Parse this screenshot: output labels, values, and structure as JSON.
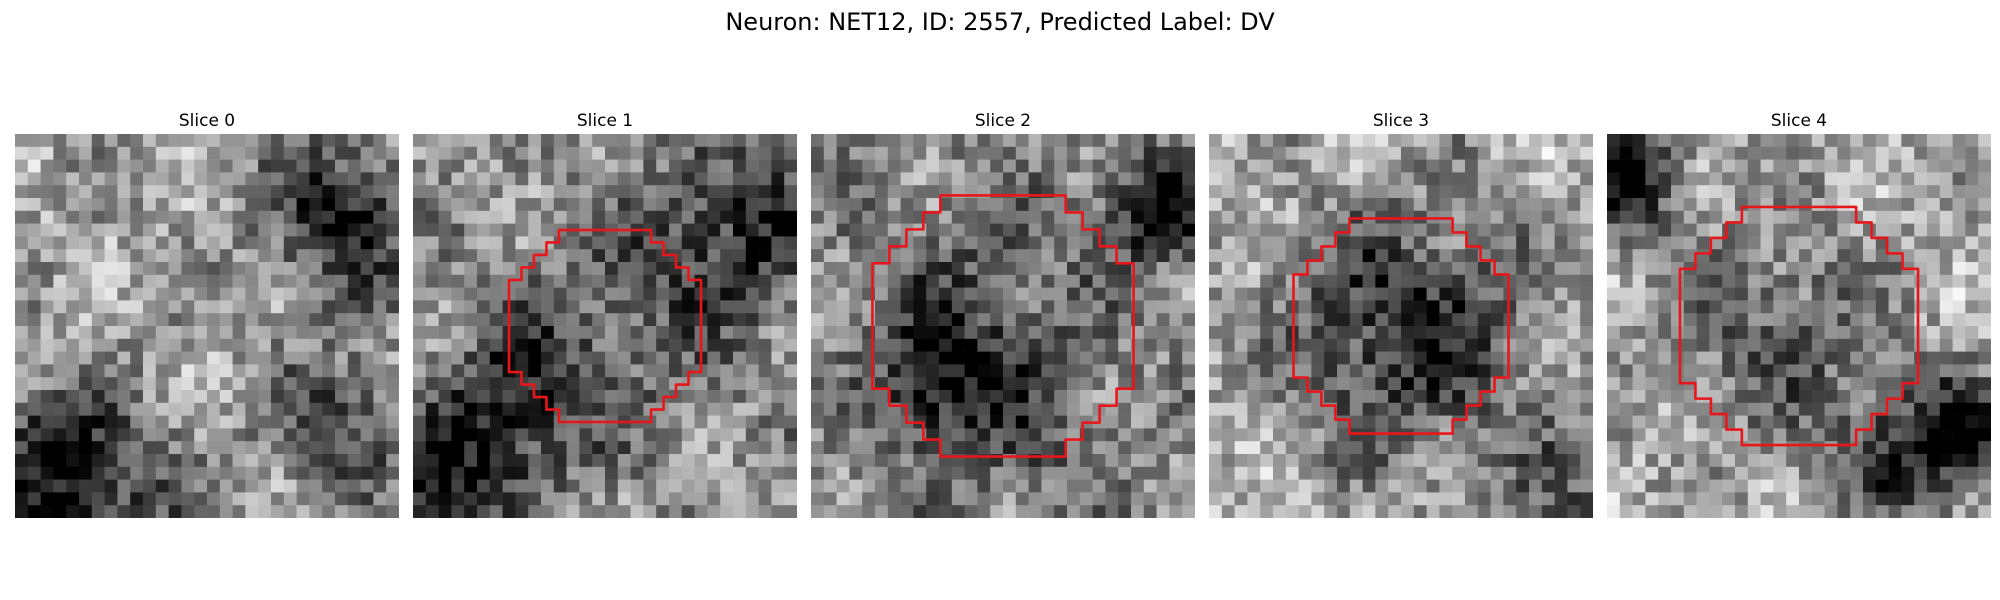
{
  "figure": {
    "suptitle": "Neuron: NET12, ID: 2557, Predicted Label: DV",
    "grid_size": 30,
    "contour_color": "#e8161b",
    "colormap": "gray",
    "panels": [
      {
        "title": "Slice 0",
        "has_contour": false,
        "dark_blobs": [
          [
            25,
            6,
            4,
            0.55
          ],
          [
            3,
            23,
            3,
            0.35
          ],
          [
            25,
            22,
            4,
            0.35
          ],
          [
            5,
            29,
            5,
            0.5
          ]
        ],
        "base": 0.62,
        "seed": 11
      },
      {
        "title": "Slice 1",
        "has_contour": true,
        "contour_scale": 0.5,
        "dark_blobs": [
          [
            25,
            7,
            5,
            0.4
          ],
          [
            7,
            21,
            4,
            0.45
          ],
          [
            15,
            15,
            6,
            0.2
          ],
          [
            2,
            28,
            4,
            0.4
          ]
        ],
        "base": 0.58,
        "seed": 23
      },
      {
        "title": "Slice 2",
        "has_contour": true,
        "contour_scale": 0.68,
        "dark_blobs": [
          [
            27,
            5,
            3,
            0.6
          ],
          [
            12,
            13,
            6,
            0.25
          ],
          [
            9,
            19,
            3,
            0.4
          ],
          [
            16,
            23,
            5,
            0.2
          ]
        ],
        "base": 0.56,
        "seed": 37
      },
      {
        "title": "Slice 3",
        "has_contour": true,
        "contour_scale": 0.56,
        "dark_blobs": [
          [
            15,
            15,
            7,
            0.55
          ],
          [
            28,
            28,
            4,
            0.3
          ]
        ],
        "base": 0.68,
        "seed": 41
      },
      {
        "title": "Slice 4",
        "has_contour": true,
        "contour_scale": 0.62,
        "dark_blobs": [
          [
            1,
            3,
            3,
            0.6
          ],
          [
            13,
            15,
            6,
            0.3
          ],
          [
            27,
            23,
            3,
            0.5
          ],
          [
            22,
            25,
            4,
            0.35
          ]
        ],
        "base": 0.66,
        "seed": 53
      }
    ]
  }
}
